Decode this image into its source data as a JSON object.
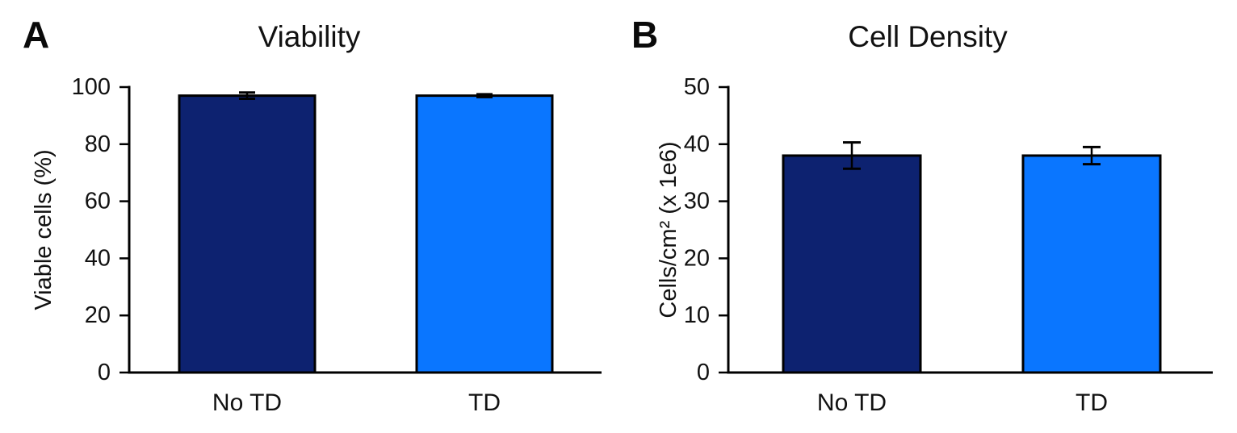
{
  "figure_background": "#ffffff",
  "text_color": "#111111",
  "axis_color": "#000000",
  "chart_data": [
    {
      "type": "bar",
      "panel_letter": "A",
      "title": "Viability",
      "categories": [
        "No TD",
        "TD"
      ],
      "values": [
        97,
        97
      ],
      "errors": [
        1.1,
        0.5
      ],
      "ylabel": "Viable cells (%)",
      "xlabel": "",
      "ylim": [
        0,
        100
      ],
      "yticks": [
        0,
        20,
        40,
        60,
        80,
        100
      ],
      "bar_colors": [
        "#0D2270",
        "#0A76FF"
      ],
      "bar_edge_color": "#000000",
      "error_color": "#000000",
      "grid": false
    },
    {
      "type": "bar",
      "panel_letter": "B",
      "title": "Cell Density",
      "categories": [
        "No TD",
        "TD"
      ],
      "values": [
        38,
        38
      ],
      "errors": [
        2.3,
        1.5
      ],
      "ylabel": "Cells/cm² (x 1e6)",
      "xlabel": "",
      "ylim": [
        0,
        50
      ],
      "yticks": [
        0,
        10,
        20,
        30,
        40,
        50
      ],
      "bar_colors": [
        "#0D2270",
        "#0A76FF"
      ],
      "bar_edge_color": "#000000",
      "error_color": "#000000",
      "grid": false
    }
  ]
}
